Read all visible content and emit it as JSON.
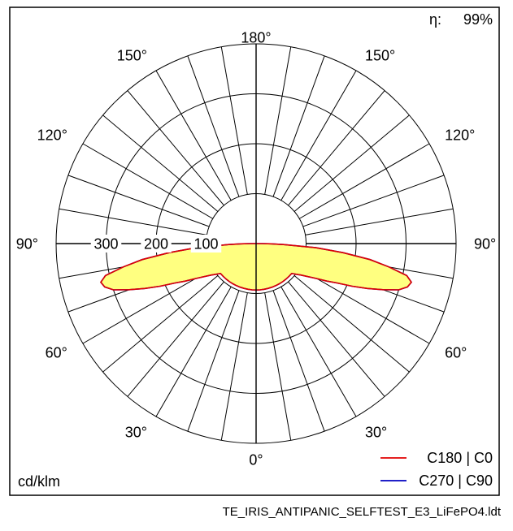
{
  "efficiency": {
    "label": "η:",
    "value": "99%"
  },
  "unit_label": "cd/klm",
  "file_name": "TE_IRIS_ANTIPANIC_SELFTEST_E3_LiFePO4.ldt",
  "chart_data": {
    "type": "polar",
    "title": "",
    "angle_labels": [
      {
        "text": "180°",
        "angle": 180,
        "side": "center"
      },
      {
        "text": "150°",
        "angle": 150,
        "side": "left"
      },
      {
        "text": "150°",
        "angle": 150,
        "side": "right"
      },
      {
        "text": "120°",
        "angle": 120,
        "side": "left"
      },
      {
        "text": "120°",
        "angle": 120,
        "side": "right"
      },
      {
        "text": "90°",
        "angle": 90,
        "side": "left"
      },
      {
        "text": "90°",
        "angle": 90,
        "side": "right"
      },
      {
        "text": "60°",
        "angle": 60,
        "side": "left"
      },
      {
        "text": "60°",
        "angle": 60,
        "side": "right"
      },
      {
        "text": "30°",
        "angle": 30,
        "side": "left"
      },
      {
        "text": "30°",
        "angle": 30,
        "side": "right"
      },
      {
        "text": "0°",
        "angle": 0,
        "side": "center"
      }
    ],
    "radial_ticks": [
      100,
      200,
      300
    ],
    "radial_tick_labels": [
      "100",
      "200",
      "300"
    ],
    "r_max": 400,
    "grid_step_deg": 10,
    "legend_position": "bottom-right",
    "series": [
      {
        "name": "C180 | C0",
        "color": "#e00000",
        "fill": "#ffff80",
        "angles": [
          0,
          5,
          10,
          15,
          20,
          25,
          30,
          35,
          40,
          45,
          50,
          55,
          60,
          62,
          64,
          66,
          68,
          70,
          72,
          74,
          76,
          78,
          80,
          82,
          84,
          86,
          88,
          89,
          90
        ],
        "values": [
          93,
          93,
          93,
          93,
          93,
          93,
          93,
          93,
          93,
          93,
          93,
          110,
          140,
          160,
          180,
          210,
          240,
          270,
          300,
          315,
          320,
          308,
          270,
          230,
          175,
          120,
          55,
          30,
          12
        ]
      },
      {
        "name": "C270 | C90",
        "color": "#0000c0",
        "fill": "#ffff80",
        "angles": [
          0,
          5,
          10,
          15,
          20,
          25,
          30,
          35,
          40,
          45,
          50,
          55,
          60,
          62,
          64,
          66,
          68,
          70,
          72,
          74,
          76,
          78,
          80,
          82,
          84,
          86,
          88,
          89,
          90
        ],
        "values": [
          93,
          93,
          93,
          93,
          93,
          93,
          93,
          93,
          93,
          93,
          93,
          110,
          140,
          160,
          180,
          210,
          240,
          270,
          300,
          315,
          320,
          308,
          270,
          230,
          175,
          120,
          55,
          30,
          12
        ]
      }
    ]
  }
}
